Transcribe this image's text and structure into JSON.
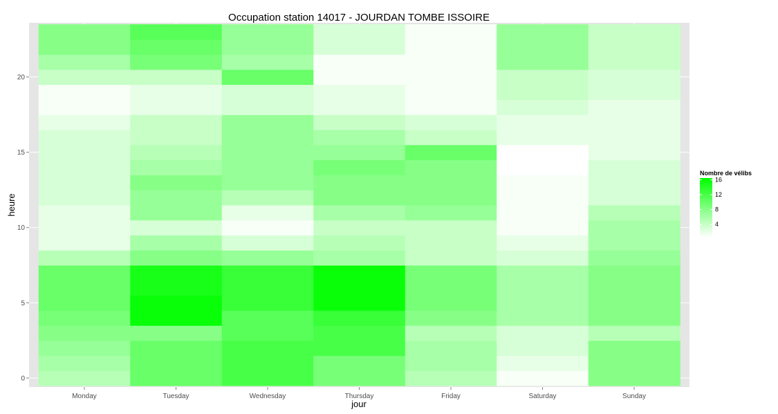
{
  "chart_data": {
    "type": "heatmap",
    "title": "Occupation station 14017 - JOURDAN TOMBE ISSOIRE",
    "xlabel": "jour",
    "ylabel": "heure",
    "x_categories": [
      "Monday",
      "Tuesday",
      "Wednesday",
      "Thursday",
      "Friday",
      "Saturday",
      "Sunday"
    ],
    "y_hours": [
      0,
      1,
      2,
      3,
      4,
      5,
      6,
      7,
      8,
      9,
      10,
      11,
      12,
      13,
      14,
      15,
      16,
      17,
      18,
      19,
      20,
      21,
      22,
      23
    ],
    "y_ticks": [
      0,
      5,
      10,
      15,
      20
    ],
    "ylim": [
      -0.6,
      23.6
    ],
    "grid": true,
    "legend": {
      "title": "Nombre de vélibs",
      "position": "right",
      "ticks": [
        4,
        8,
        12,
        16
      ],
      "min": 0.5,
      "max": 16.5,
      "low_color": "#ffffff",
      "high_color": "#00ff00"
    },
    "values": [
      [
        5,
        10,
        12,
        9,
        5,
        1,
        8
      ],
      [
        6,
        10,
        12,
        9,
        6,
        2,
        8
      ],
      [
        7,
        10,
        12,
        12,
        6,
        3,
        8
      ],
      [
        8,
        8,
        11,
        12,
        5,
        3,
        5
      ],
      [
        9,
        16,
        11,
        13,
        8,
        6,
        8
      ],
      [
        10,
        16,
        13,
        16,
        9,
        6,
        8
      ],
      [
        10,
        15,
        13,
        16,
        9,
        6,
        8
      ],
      [
        10,
        15,
        13,
        16,
        9,
        6,
        8
      ],
      [
        5,
        8,
        7,
        6,
        4,
        3,
        7
      ],
      [
        2,
        6,
        3,
        5,
        4,
        2,
        6
      ],
      [
        2,
        3,
        1,
        4,
        4,
        1,
        6
      ],
      [
        2,
        7,
        2,
        6,
        7,
        1,
        5
      ],
      [
        3,
        7,
        5,
        8,
        8,
        1,
        3
      ],
      [
        3,
        8,
        7,
        8,
        8,
        1,
        3
      ],
      [
        3,
        6,
        7,
        9,
        8,
        0.5,
        3
      ],
      [
        3,
        5,
        7,
        7,
        10,
        0.5,
        2
      ],
      [
        3,
        4,
        7,
        6,
        4,
        2,
        2
      ],
      [
        2,
        4,
        7,
        4,
        3,
        2,
        2
      ],
      [
        1,
        2,
        3,
        2,
        1,
        3,
        2
      ],
      [
        1,
        2,
        3,
        2,
        1,
        4,
        3
      ],
      [
        4,
        4,
        10,
        1,
        1,
        4,
        3
      ],
      [
        6,
        9,
        6,
        1,
        1,
        7,
        4
      ],
      [
        8,
        10,
        7,
        3,
        1,
        7,
        4
      ],
      [
        8,
        11,
        7,
        3,
        1,
        7,
        4
      ]
    ]
  }
}
